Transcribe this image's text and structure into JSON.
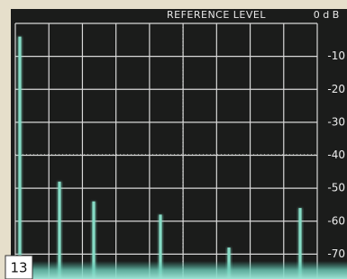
{
  "chart_data": {
    "type": "spectrum",
    "title": "REFERENCE LEVEL",
    "reference": "0 d B",
    "figure_label": "13",
    "values": [
      -4,
      -48,
      -54,
      -58,
      -68,
      -56
    ],
    "color": "#86dcc6",
    "ylim": [
      -80,
      0
    ],
    "yticks": [
      -10,
      -20,
      -30,
      -40,
      -50,
      -60,
      -70
    ],
    "grid": true
  }
}
